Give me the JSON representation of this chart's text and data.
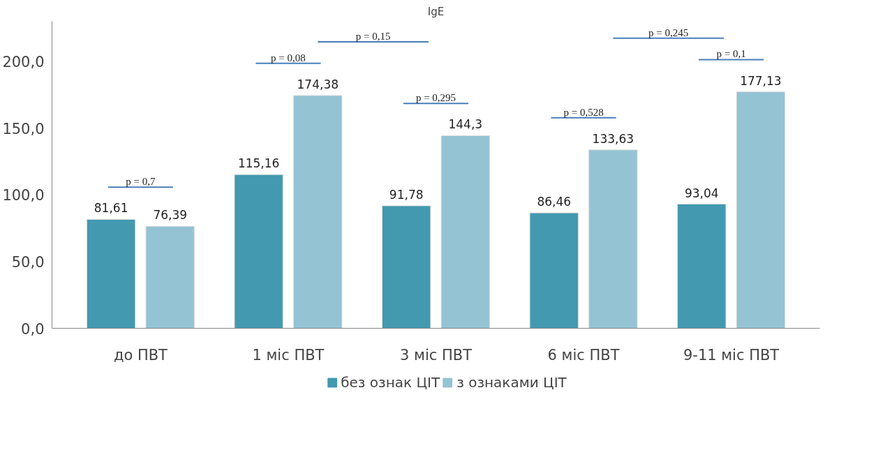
{
  "chart_data": {
    "type": "bar",
    "title": "IgE",
    "categories": [
      "до ПВТ",
      "1 міс ПВТ",
      "3 міс ПВТ",
      "6 міс ПВТ",
      "9-11 міс ПВТ"
    ],
    "series": [
      {
        "name": "без ознак ЦІТ",
        "color": "#4299b0",
        "values": [
          81.61,
          115.16,
          91.78,
          86.46,
          93.04
        ],
        "value_labels": [
          "81,61",
          "115,16",
          "91,78",
          "86,46",
          "93,04"
        ]
      },
      {
        "name": "з ознаками ЦІТ",
        "color": "#94c3d4",
        "values": [
          76.39,
          174.38,
          144.3,
          133.63,
          177.13
        ],
        "value_labels": [
          "76,39",
          "174,38",
          "144,3",
          "133,63",
          "177,13"
        ]
      }
    ],
    "ylim": [
      0,
      230
    ],
    "yticks": [
      {
        "value": 0,
        "label": "0,0"
      },
      {
        "value": 50,
        "label": "50,0"
      },
      {
        "value": 100,
        "label": "100,0"
      },
      {
        "value": 150,
        "label": "150,0"
      },
      {
        "value": 200,
        "label": "200,0"
      }
    ],
    "grid": false,
    "legend": "bottom",
    "annotations": [
      "p = 0,7",
      "p = 0,08",
      "p = 0,15",
      "p = 0,295",
      "p = 0,528",
      "p = 0,245",
      "p = 0,1"
    ]
  }
}
